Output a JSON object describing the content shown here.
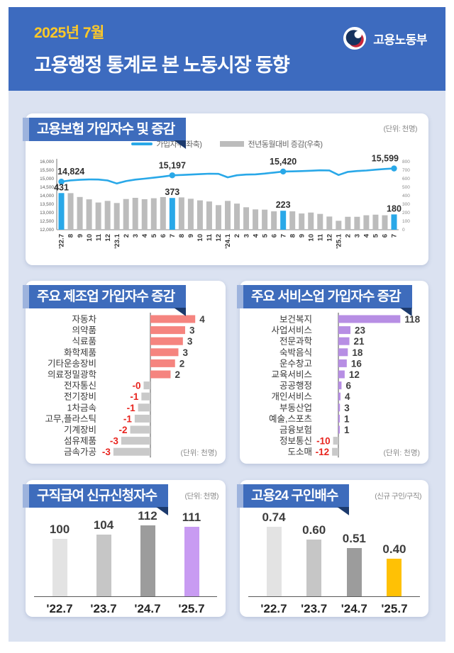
{
  "header": {
    "date": "2025년 7월",
    "title": "고용행정 통계로 본 노동시장 동향",
    "ministry": "고용노동부"
  },
  "colors": {
    "header_bg": "#3d6bbf",
    "content_bg": "#dbe2f1",
    "ribbon": "#3e6cbc",
    "ribbon_accent": "#9db3dd",
    "ribbon_fold": "#1c3a6d",
    "date_text": "#ffc928",
    "negative_text": "#e8251f",
    "value_text": "#3f3f3f",
    "axis_line": "#8c8c8c",
    "emblem_navy": "#16325e",
    "emblem_red": "#c8273a"
  },
  "chart_data": [
    {
      "type": "line+bar",
      "title": "고용보험 가입자수 및 증감",
      "unit": "(단위: 천명)",
      "categories": [
        "'22.7",
        "8",
        "9",
        "10",
        "11",
        "12",
        "'23.1",
        "2",
        "3",
        "4",
        "5",
        "6",
        "7",
        "8",
        "9",
        "10",
        "11",
        "12",
        "'24.1",
        "2",
        "3",
        "4",
        "5",
        "6",
        "7",
        "8",
        "9",
        "10",
        "11",
        "12",
        "'25.1",
        "2",
        "3",
        "4",
        "5",
        "6",
        "7"
      ],
      "left_axis": {
        "min": 12000,
        "max": 16000,
        "step": 500
      },
      "right_axis": {
        "min": 0,
        "max": 800,
        "step": 100
      },
      "series": [
        {
          "name": "가입자수(좌축)",
          "chart": "line",
          "axis": "left",
          "color": "#29a8e8",
          "values": [
            14824,
            14900,
            14935,
            14955,
            14950,
            14895,
            14715,
            14860,
            14945,
            15000,
            15060,
            15120,
            15197,
            15215,
            15240,
            15265,
            15290,
            15285,
            15080,
            15200,
            15240,
            15255,
            15300,
            15360,
            15420,
            15430,
            15445,
            15465,
            15490,
            15485,
            15215,
            15400,
            15450,
            15480,
            15530,
            15570,
            15599
          ],
          "point_labels": {
            "0": "14,824",
            "12": "15,197",
            "24": "15,420",
            "36": "15,599"
          }
        },
        {
          "name": "전년동월대비 증감(우축)",
          "chart": "bar",
          "axis": "right",
          "color": "#bcbcbc",
          "highlight_color": "#29a8e8",
          "highlight_indices": [
            0,
            12,
            24,
            36
          ],
          "values": [
            431,
            430,
            385,
            357,
            320,
            339,
            314,
            361,
            375,
            359,
            370,
            384,
            373,
            380,
            364,
            345,
            332,
            289,
            339,
            307,
            264,
            239,
            236,
            216,
            223,
            216,
            191,
            202,
            186,
            155,
            105,
            152,
            152,
            170,
            177,
            170,
            180
          ],
          "point_labels": {
            "0": "431",
            "12": "373",
            "24": "223",
            "36": "180"
          }
        }
      ]
    },
    {
      "type": "bar",
      "orientation": "horizontal",
      "title": "주요 제조업 가입자수 증감",
      "unit": "(단위: 천명)",
      "categories": [
        "자동차",
        "의약품",
        "식료품",
        "화학제품",
        "기타운송장비",
        "의료정밀광학",
        "전자통신",
        "전기장비",
        "1차금속",
        "고무,플라스틱",
        "기계장비",
        "섬유제품",
        "금속가공"
      ],
      "labels": [
        "4",
        "3",
        "3",
        "3",
        "2",
        "2",
        "-0",
        "-1",
        "-1",
        "-1",
        "-2",
        "-3",
        "-3"
      ],
      "values": [
        4,
        3,
        3,
        3,
        2,
        2,
        0,
        -1,
        -1,
        -1,
        -2,
        -3,
        -3
      ],
      "bar_lengths": [
        4,
        3.1,
        2.9,
        2.5,
        2.2,
        1.8,
        -0.6,
        -0.8,
        -1.1,
        -1.4,
        -1.8,
        -2.6,
        -3.3
      ],
      "positive_color": "#f5847f",
      "negative_color": "#c9c9c9"
    },
    {
      "type": "bar",
      "orientation": "horizontal",
      "title": "주요 서비스업 가입자수 증감",
      "unit": "(단위: 천명)",
      "categories": [
        "보건복지",
        "사업서비스",
        "전문과학",
        "숙박음식",
        "운수창고",
        "교육서비스",
        "공공행정",
        "개인서비스",
        "부동산업",
        "예술,스포츠",
        "금융보험",
        "정보통신",
        "도소매"
      ],
      "labels": [
        "118",
        "23",
        "21",
        "18",
        "16",
        "12",
        "6",
        "4",
        "3",
        "1",
        "1",
        "-10",
        "-12"
      ],
      "values": [
        118,
        23,
        21,
        18,
        16,
        12,
        6,
        4,
        3,
        1,
        1,
        -10,
        -12
      ],
      "bar_lengths": [
        118,
        23,
        21,
        18,
        16,
        12,
        6,
        4,
        3,
        1,
        1,
        -10,
        -12
      ],
      "positive_color": "#b78ee4",
      "negative_color": "#c9c9c9"
    },
    {
      "type": "bar",
      "orientation": "vertical",
      "title": "구직급여 신규신청자수",
      "unit": "(단위: 천명)",
      "categories": [
        "'22.7",
        "'23.7",
        "'24.7",
        "'25.7"
      ],
      "values": [
        100,
        104,
        112,
        111
      ],
      "labels": [
        "100",
        "104",
        "112",
        "111"
      ],
      "bar_colors": [
        "#e3e3e3",
        "#c6c6c6",
        "#9c9c9c",
        "#c89bf2"
      ],
      "ylim": [
        50,
        120
      ]
    },
    {
      "type": "bar",
      "orientation": "vertical",
      "title": "고용24 구인배수",
      "unit": "(신규 구인/구직)",
      "categories": [
        "'22.7",
        "'23.7",
        "'24.7",
        "'25.7"
      ],
      "values": [
        0.74,
        0.6,
        0.51,
        0.4
      ],
      "labels": [
        "0.74",
        "0.60",
        "0.51",
        "0.40"
      ],
      "bar_colors": [
        "#e3e3e3",
        "#c6c6c6",
        "#9c9c9c",
        "#ffc105"
      ],
      "ylim": [
        0,
        0.85
      ]
    }
  ]
}
